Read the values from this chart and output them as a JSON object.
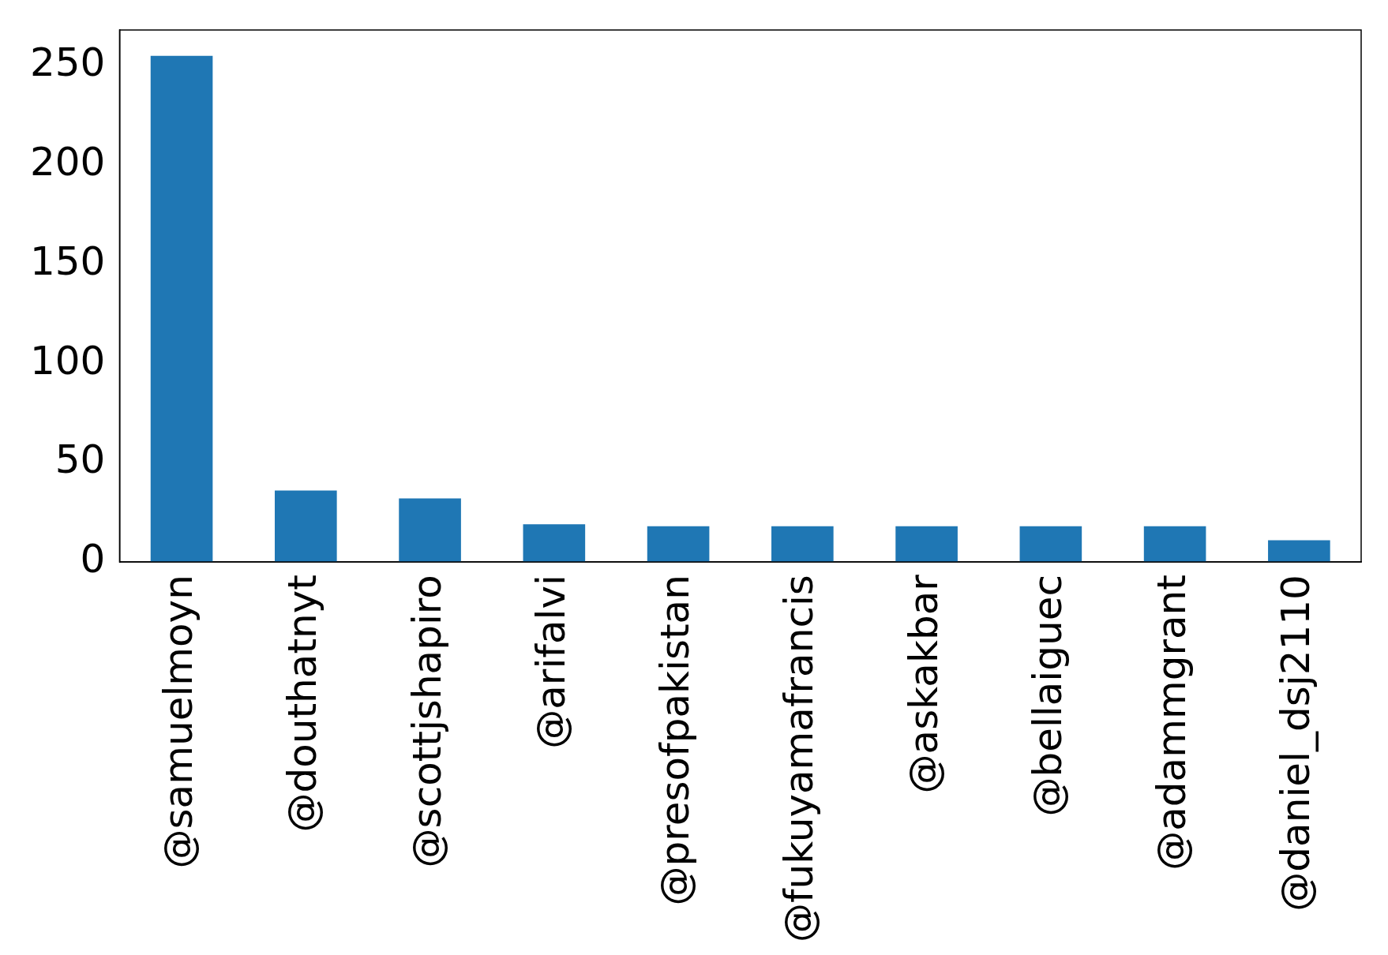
{
  "chart_data": {
    "type": "bar",
    "categories": [
      "@samuelmoyn",
      "@douthatnyt",
      "@scottjshapiro",
      "@arifalvi",
      "@presofpakistan",
      "@fukuyamafrancis",
      "@askakbar",
      "@bellaiguec",
      "@adammgrant",
      "@daniel_dsj2110"
    ],
    "values": [
      255,
      36,
      32,
      19,
      18,
      18,
      18,
      18,
      18,
      11
    ],
    "color": "#1f77b4",
    "ylim": [
      0,
      268
    ],
    "yticks": [
      0,
      50,
      100,
      150,
      200,
      250
    ],
    "grid": false,
    "legend": false
  }
}
